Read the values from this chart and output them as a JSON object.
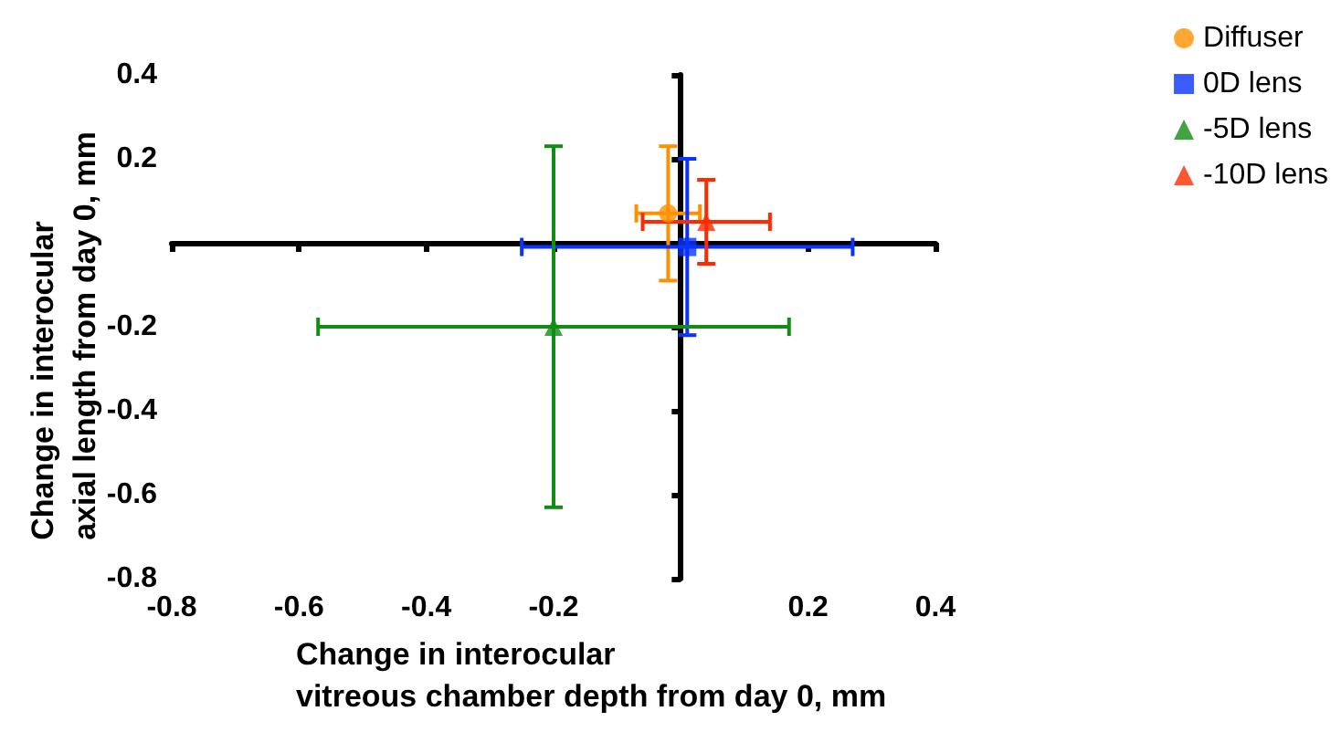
{
  "chart_data": {
    "type": "scatter",
    "xlabel": "Change in interocular\nvitreous chamber depth from day 0, mm",
    "ylabel": "Change in interocular\naxial length from day 0, mm",
    "xlim": [
      -0.8,
      0.4
    ],
    "xticks": [
      -0.8,
      -0.6,
      -0.4,
      -0.2,
      0.2,
      0.4
    ],
    "ylim": [
      -0.8,
      0.4
    ],
    "yticks": [
      -0.8,
      -0.6,
      -0.4,
      -0.2,
      0.2,
      0.4
    ],
    "grid": false,
    "legend": "top right",
    "series": [
      {
        "name": "Diffuser",
        "color": "#ff9100",
        "marker": "circle",
        "x": [
          -0.02
        ],
        "values": [
          0.07
        ],
        "errors": [
          0.16
        ],
        "xerrors": [
          0.05
        ]
      },
      {
        "name": "0D lens",
        "color": "#0a33ff",
        "marker": "square",
        "x": [
          0.01
        ],
        "values": [
          -0.01
        ],
        "errors": [
          0.21
        ],
        "xerrors": [
          0.26
        ]
      },
      {
        "name": "-5D lens",
        "color": "#138c13",
        "marker": "triangle",
        "x": [
          -0.2
        ],
        "values": [
          -0.2
        ],
        "errors": [
          0.43
        ],
        "xerrors": [
          0.37
        ]
      },
      {
        "name": "-10D lens",
        "color": "#ff2a00",
        "marker": "triangle",
        "x": [
          0.04
        ],
        "values": [
          0.05
        ],
        "errors": [
          0.1
        ],
        "xerrors": [
          0.1
        ]
      }
    ]
  }
}
